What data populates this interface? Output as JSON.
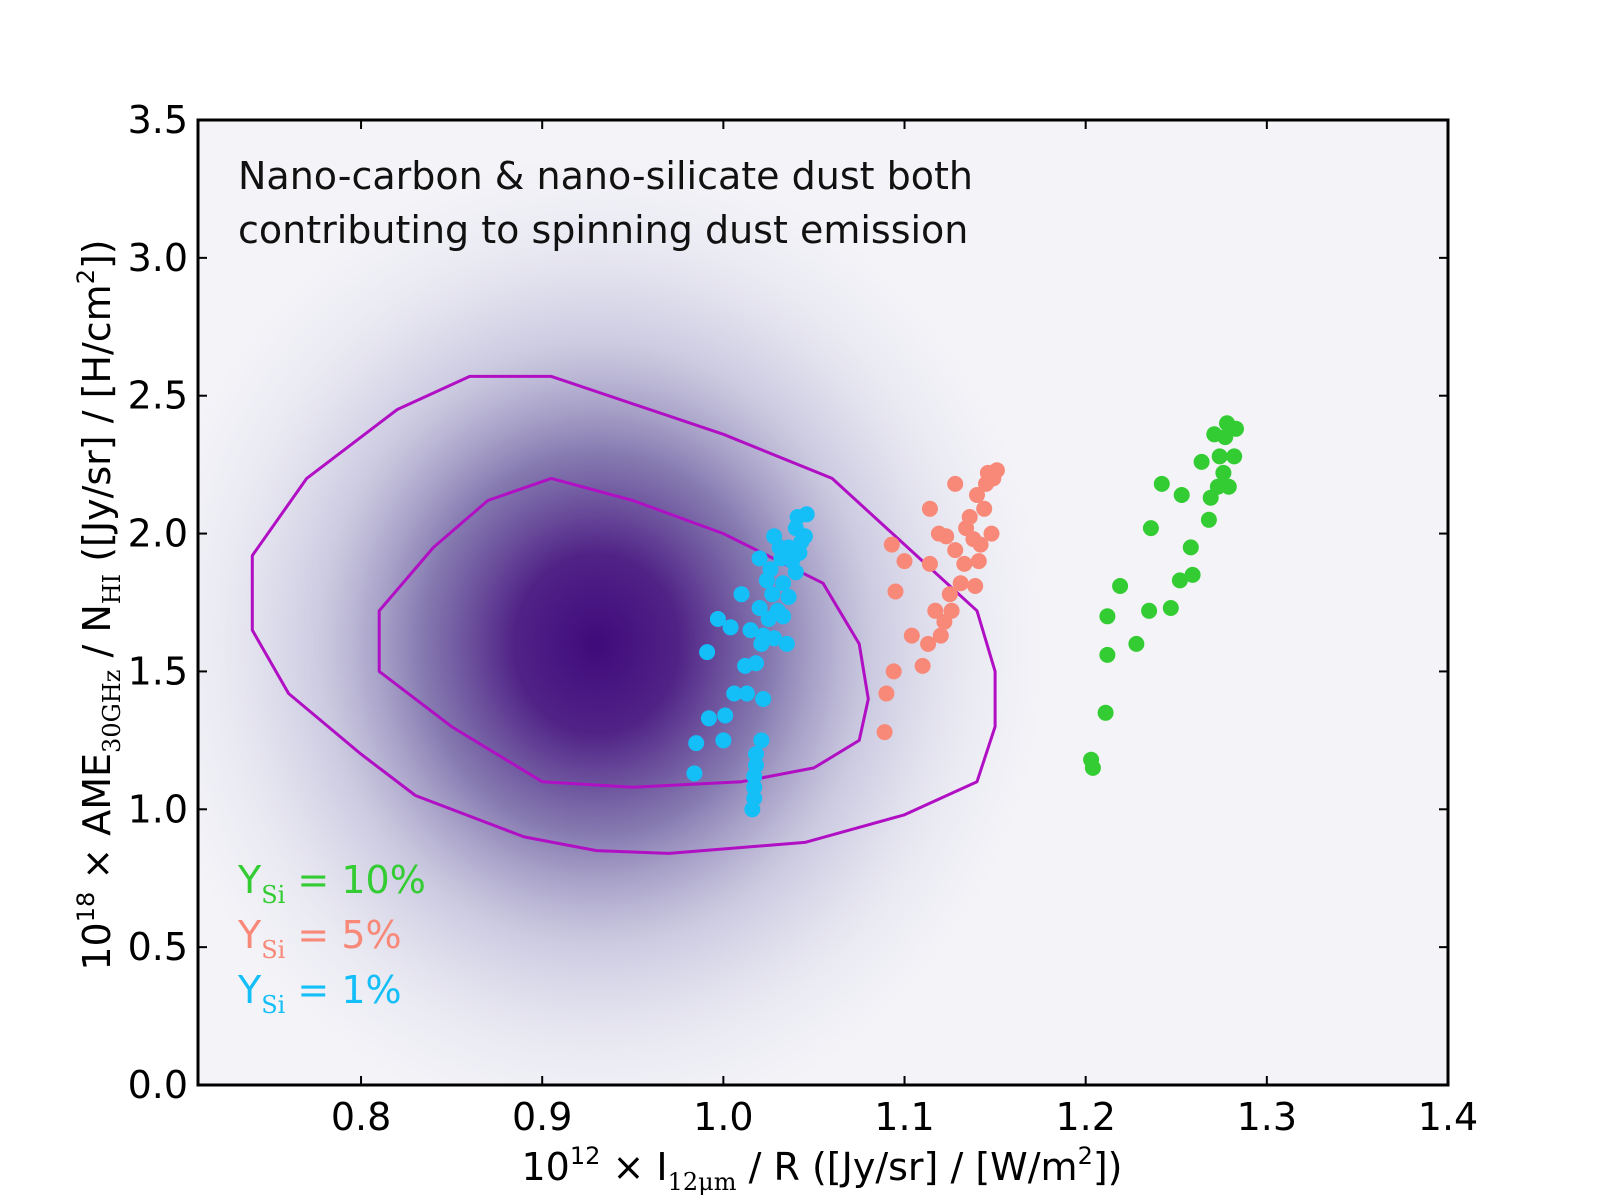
{
  "chart_data": {
    "type": "scatter",
    "annotation": [
      "Nano-carbon & nano-silicate dust both",
      "contributing to spinning dust emission"
    ],
    "xlabel": {
      "prefix": "10",
      "exp": "12",
      "mid": " × I",
      "sub": "12μm",
      "pre_exp2": " / R ([Jy/sr] / [W/m",
      "exp2": "2",
      "suffix": "])"
    },
    "ylabel": {
      "prefix": "10",
      "exp": "18",
      "mid": " × AME",
      "sub": "30GHz",
      "mid2": " / N",
      "sub2": "HI",
      "pre_exp2": " ([Jy/sr] / [H/cm",
      "exp2": "2",
      "suffix": "])"
    },
    "xlim": [
      0.71,
      1.4
    ],
    "ylim": [
      0.0,
      3.5
    ],
    "xticks": [
      "0.8",
      "0.9",
      "1.0",
      "1.1",
      "1.2",
      "1.3",
      "1.4"
    ],
    "yticks": [
      "0.0",
      "0.5",
      "1.0",
      "1.5",
      "2.0",
      "2.5",
      "3.0",
      "3.5"
    ],
    "grid": false,
    "legend_placement": "bottom-left",
    "colors": {
      "density": "#3f0a7a",
      "contour": "#b00fc4",
      "Y10": "#33cc33",
      "Y5": "#f88878",
      "Y1": "#14bff8"
    },
    "density": {
      "peak_x": 0.93,
      "peak_y": 1.6
    },
    "contours": [
      {
        "name": "outer",
        "points": [
          [
            0.86,
            2.57
          ],
          [
            0.905,
            2.57
          ],
          [
            1.0,
            2.36
          ],
          [
            1.06,
            2.2
          ],
          [
            1.11,
            1.9
          ],
          [
            1.14,
            1.72
          ],
          [
            1.15,
            1.5
          ],
          [
            1.15,
            1.3
          ],
          [
            1.14,
            1.1
          ],
          [
            1.1,
            0.98
          ],
          [
            1.045,
            0.88
          ],
          [
            0.97,
            0.84
          ],
          [
            0.93,
            0.85
          ],
          [
            0.89,
            0.9
          ],
          [
            0.83,
            1.05
          ],
          [
            0.8,
            1.2
          ],
          [
            0.76,
            1.42
          ],
          [
            0.74,
            1.65
          ],
          [
            0.74,
            1.92
          ],
          [
            0.77,
            2.2
          ],
          [
            0.82,
            2.45
          ],
          [
            0.86,
            2.57
          ]
        ]
      },
      {
        "name": "inner",
        "points": [
          [
            0.905,
            2.2
          ],
          [
            0.95,
            2.12
          ],
          [
            1.0,
            2.0
          ],
          [
            1.055,
            1.82
          ],
          [
            1.075,
            1.6
          ],
          [
            1.08,
            1.4
          ],
          [
            1.075,
            1.25
          ],
          [
            1.05,
            1.15
          ],
          [
            1.01,
            1.1
          ],
          [
            0.95,
            1.08
          ],
          [
            0.9,
            1.1
          ],
          [
            0.85,
            1.3
          ],
          [
            0.81,
            1.5
          ],
          [
            0.81,
            1.72
          ],
          [
            0.84,
            1.95
          ],
          [
            0.87,
            2.12
          ],
          [
            0.905,
            2.2
          ]
        ]
      }
    ],
    "series": [
      {
        "label": "Y_Si = 10%",
        "color": "#33cc33",
        "points": [
          [
            1.203,
            1.18
          ],
          [
            1.204,
            1.15
          ],
          [
            1.211,
            1.35
          ],
          [
            1.212,
            1.56
          ],
          [
            1.212,
            1.7
          ],
          [
            1.219,
            1.81
          ],
          [
            1.228,
            1.6
          ],
          [
            1.235,
            1.72
          ],
          [
            1.236,
            2.02
          ],
          [
            1.242,
            2.18
          ],
          [
            1.247,
            1.73
          ],
          [
            1.252,
            1.83
          ],
          [
            1.253,
            2.14
          ],
          [
            1.258,
            1.95
          ],
          [
            1.259,
            1.85
          ],
          [
            1.264,
            2.26
          ],
          [
            1.268,
            2.05
          ],
          [
            1.269,
            2.13
          ],
          [
            1.271,
            2.36
          ],
          [
            1.273,
            2.17
          ],
          [
            1.274,
            2.28
          ],
          [
            1.277,
            2.35
          ],
          [
            1.278,
            2.4
          ],
          [
            1.279,
            2.17
          ],
          [
            1.282,
            2.28
          ],
          [
            1.283,
            2.38
          ],
          [
            1.276,
            2.22
          ]
        ]
      },
      {
        "label": "Y_Si = 5%",
        "color": "#f88878",
        "points": [
          [
            1.089,
            1.28
          ],
          [
            1.09,
            1.42
          ],
          [
            1.094,
            1.5
          ],
          [
            1.093,
            1.96
          ],
          [
            1.095,
            1.79
          ],
          [
            1.1,
            1.9
          ],
          [
            1.104,
            1.63
          ],
          [
            1.11,
            1.52
          ],
          [
            1.113,
            1.6
          ],
          [
            1.114,
            1.89
          ],
          [
            1.114,
            2.09
          ],
          [
            1.117,
            1.72
          ],
          [
            1.119,
            2.0
          ],
          [
            1.123,
            1.99
          ],
          [
            1.125,
            1.78
          ],
          [
            1.128,
            1.94
          ],
          [
            1.128,
            2.18
          ],
          [
            1.131,
            1.82
          ],
          [
            1.133,
            1.89
          ],
          [
            1.136,
            2.06
          ],
          [
            1.139,
            1.81
          ],
          [
            1.14,
            2.14
          ],
          [
            1.141,
            1.9
          ],
          [
            1.142,
            1.96
          ],
          [
            1.144,
            2.09
          ],
          [
            1.145,
            2.18
          ],
          [
            1.146,
            2.22
          ],
          [
            1.148,
            2.0
          ],
          [
            1.149,
            2.2
          ],
          [
            1.151,
            2.23
          ],
          [
            1.134,
            2.02
          ],
          [
            1.138,
            1.98
          ],
          [
            1.12,
            1.63
          ],
          [
            1.122,
            1.68
          ],
          [
            1.126,
            1.72
          ]
        ]
      },
      {
        "label": "Y_Si = 1%",
        "color": "#14bff8",
        "points": [
          [
            0.984,
            1.13
          ],
          [
            0.985,
            1.24
          ],
          [
            0.991,
            1.57
          ],
          [
            0.992,
            1.33
          ],
          [
            0.997,
            1.69
          ],
          [
            1.0,
            1.25
          ],
          [
            1.001,
            1.34
          ],
          [
            1.004,
            1.66
          ],
          [
            1.006,
            1.42
          ],
          [
            1.01,
            1.78
          ],
          [
            1.012,
            1.52
          ],
          [
            1.013,
            1.42
          ],
          [
            1.015,
            1.65
          ],
          [
            1.016,
            1.0
          ],
          [
            1.017,
            1.04
          ],
          [
            1.017,
            1.08
          ],
          [
            1.017,
            1.12
          ],
          [
            1.018,
            1.16
          ],
          [
            1.018,
            1.2
          ],
          [
            1.018,
            1.53
          ],
          [
            1.02,
            1.73
          ],
          [
            1.02,
            1.91
          ],
          [
            1.021,
            1.6
          ],
          [
            1.021,
            1.25
          ],
          [
            1.022,
            1.4
          ],
          [
            1.022,
            1.63
          ],
          [
            1.024,
            1.83
          ],
          [
            1.025,
            1.69
          ],
          [
            1.026,
            1.87
          ],
          [
            1.027,
            1.78
          ],
          [
            1.028,
            1.99
          ],
          [
            1.028,
            1.62
          ],
          [
            1.03,
            1.72
          ],
          [
            1.031,
            1.95
          ],
          [
            1.032,
            1.91
          ],
          [
            1.033,
            1.7
          ],
          [
            1.033,
            1.82
          ],
          [
            1.035,
            1.6
          ],
          [
            1.036,
            1.95
          ],
          [
            1.036,
            1.77
          ],
          [
            1.038,
            1.9
          ],
          [
            1.04,
            2.02
          ],
          [
            1.04,
            1.86
          ],
          [
            1.041,
            2.06
          ],
          [
            1.042,
            1.93
          ],
          [
            1.043,
            1.97
          ],
          [
            1.045,
            1.99
          ],
          [
            1.046,
            2.07
          ]
        ]
      }
    ],
    "legend": [
      {
        "base": "Y",
        "sub": "Si",
        "rest": " = 10%",
        "color": "#33cc33"
      },
      {
        "base": "Y",
        "sub": "Si",
        "rest": " = 5%",
        "color": "#f88878"
      },
      {
        "base": "Y",
        "sub": "Si",
        "rest": " = 1%",
        "color": "#14bff8"
      }
    ]
  }
}
